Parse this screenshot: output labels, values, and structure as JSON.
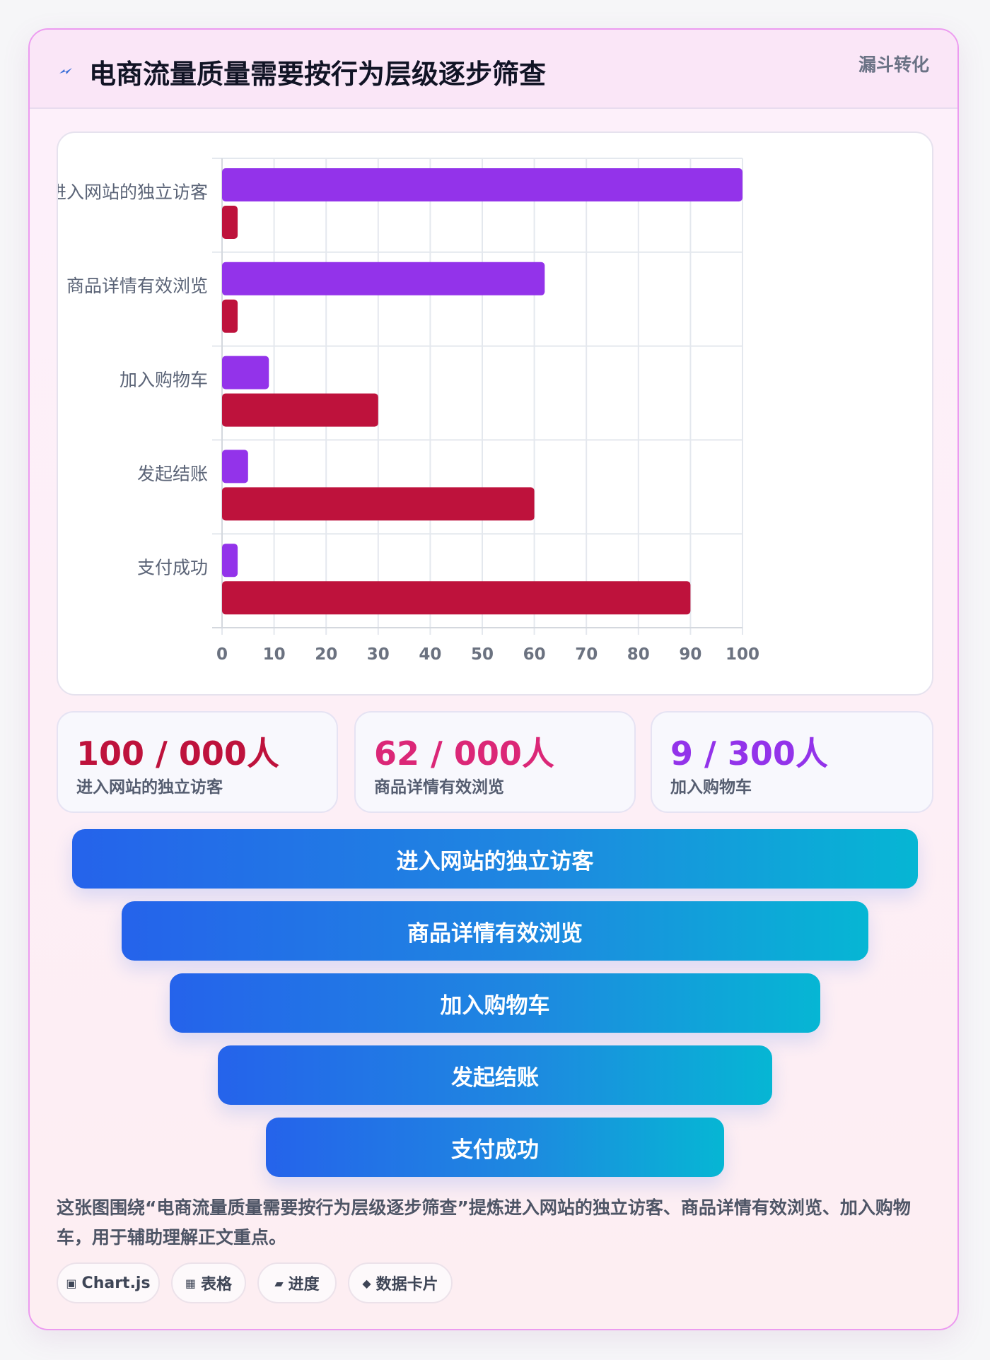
{
  "header": {
    "title": "电商流量质量需要按行为层级逐步筛查",
    "tag": "漏斗转化"
  },
  "chart_data": {
    "type": "bar",
    "orientation": "horizontal",
    "categories": [
      "进入网站的独立访客",
      "商品详情有效浏览",
      "加入购物车",
      "发起结账",
      "支付成功"
    ],
    "series": [
      {
        "values": [
          100,
          62,
          9,
          5,
          3
        ],
        "color": "#9333ea"
      },
      {
        "values": [
          3,
          3,
          30,
          60,
          90
        ],
        "color": "#be123c"
      }
    ],
    "xlim": [
      0,
      100
    ],
    "xticks": [
      0,
      10,
      20,
      30,
      40,
      50,
      60,
      70,
      80,
      90,
      100
    ],
    "grid": true,
    "legend": "none"
  },
  "stats": [
    {
      "value": "100 / 000人",
      "label": "进入网站的独立访客",
      "color": "#be123c"
    },
    {
      "value": "62 / 000人",
      "label": "商品详情有效浏览",
      "color": "#db2777"
    },
    {
      "value": "9 / 300人",
      "label": "加入购物车",
      "color": "#9333ea"
    }
  ],
  "funnel": [
    "进入网站的独立访客",
    "商品详情有效浏览",
    "加入购物车",
    "发起结账",
    "支付成功"
  ],
  "description": "这张图围绕“电商流量质量需要按行为层级逐步筛查”提炼进入网站的独立访客、商品详情有效浏览、加入购物车，用于辅助理解正文重点。",
  "chips": [
    {
      "icon": "▣",
      "label": "Chart.js"
    },
    {
      "icon": "▦",
      "label": "表格"
    },
    {
      "icon": "▰",
      "label": "进度"
    },
    {
      "icon": "◆",
      "label": "数据卡片"
    }
  ]
}
